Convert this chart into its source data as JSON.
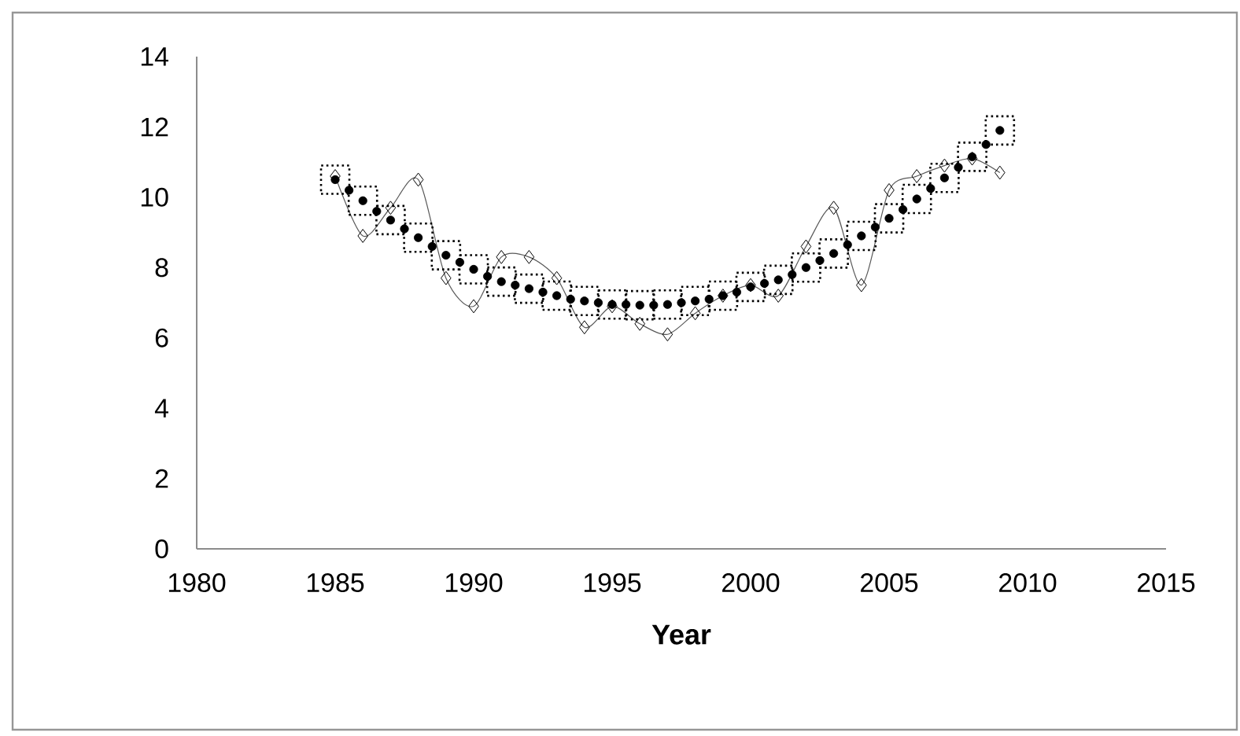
{
  "chart_data": {
    "type": "line",
    "xlabel": "Year",
    "xlim": [
      1980,
      2015
    ],
    "xticks": [
      1980,
      1985,
      1990,
      1995,
      2000,
      2005,
      2010,
      2015
    ],
    "ylim": [
      0,
      14
    ],
    "yticks": [
      0,
      2,
      4,
      6,
      8,
      10,
      12,
      14
    ],
    "grid": false,
    "legend": false,
    "series": [
      {
        "marker": "diamond",
        "color": "#595959",
        "x": [
          1985,
          1986,
          1987,
          1988,
          1989,
          1990,
          1991,
          1992,
          1993,
          1994,
          1995,
          1996,
          1997,
          1998,
          1999,
          2000,
          2001,
          2002,
          2003,
          2004,
          2005,
          2006,
          2007,
          2008,
          2009
        ],
        "values": [
          10.6,
          8.9,
          9.7,
          10.5,
          7.7,
          6.9,
          8.3,
          8.3,
          7.7,
          6.3,
          6.9,
          6.4,
          6.1,
          6.7,
          7.2,
          7.5,
          7.2,
          8.6,
          9.7,
          7.5,
          10.2,
          10.6,
          10.9,
          11.1,
          10.7
        ]
      },
      {
        "type": "scatter",
        "marker": "circle",
        "color": "#000000",
        "x": [
          1985,
          1985.5,
          1986,
          1986.5,
          1987,
          1987.5,
          1988,
          1988.5,
          1989,
          1989.5,
          1990,
          1990.5,
          1991,
          1991.5,
          1992,
          1992.5,
          1993,
          1993.5,
          1994,
          1994.5,
          1995,
          1995.5,
          1996,
          1996.5,
          1997,
          1997.5,
          1998,
          1998.5,
          1999,
          1999.5,
          2000,
          2000.5,
          2001,
          2001.5,
          2002,
          2002.5,
          2003,
          2003.5,
          2004,
          2004.5,
          2005,
          2005.5,
          2006,
          2006.5,
          2007,
          2007.5,
          2008,
          2008.5,
          2009
        ],
        "values": [
          10.5,
          10.2,
          9.9,
          9.6,
          9.35,
          9.1,
          8.85,
          8.6,
          8.35,
          8.15,
          7.95,
          7.75,
          7.6,
          7.5,
          7.4,
          7.3,
          7.2,
          7.1,
          7.05,
          7.0,
          6.95,
          6.95,
          6.93,
          6.93,
          6.95,
          7.0,
          7.05,
          7.1,
          7.2,
          7.3,
          7.45,
          7.55,
          7.65,
          7.8,
          8.0,
          8.2,
          8.4,
          8.65,
          8.9,
          9.15,
          9.4,
          9.65,
          9.95,
          10.25,
          10.55,
          10.85,
          11.15,
          11.5,
          11.9
        ]
      },
      {
        "type": "scatter",
        "marker": "square",
        "color": "#000000",
        "x": [
          1985,
          1986,
          1987,
          1988,
          1989,
          1990,
          1991,
          1992,
          1993,
          1994,
          1995,
          1996,
          1997,
          1998,
          1999,
          2000,
          2001,
          2002,
          2003,
          2004,
          2005,
          2006,
          2007,
          2008,
          2009
        ],
        "values": [
          10.5,
          9.9,
          9.35,
          8.85,
          8.35,
          7.95,
          7.6,
          7.4,
          7.2,
          7.05,
          6.95,
          6.93,
          6.95,
          7.05,
          7.2,
          7.45,
          7.65,
          8.0,
          8.4,
          8.9,
          9.4,
          9.95,
          10.55,
          11.15,
          11.9
        ]
      }
    ]
  }
}
